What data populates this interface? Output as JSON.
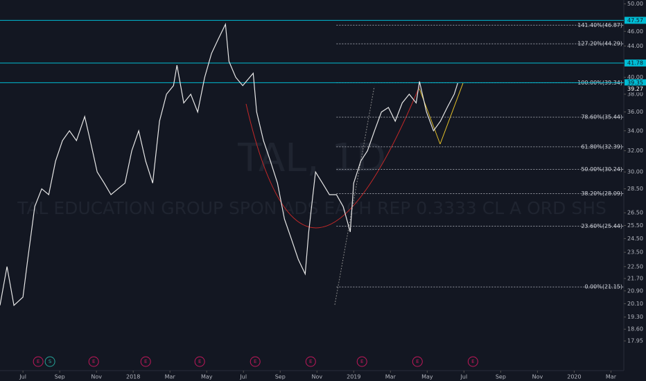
{
  "chart_data": {
    "type": "line",
    "watermark": "TAL, 1D",
    "watermark_subtitle": "TAL EDUCATION GROUP SPON ADS EACH REP 0.3333 CL A ORD SHS",
    "log_scale": true,
    "xlim": [
      -1.25,
      32.7
    ],
    "ylim": [
      16.4,
      50.6
    ],
    "xticks": [
      {
        "value": 0,
        "label": "Jul"
      },
      {
        "value": 2,
        "label": "Sep"
      },
      {
        "value": 4,
        "label": "Nov"
      },
      {
        "value": 6,
        "label": "2018"
      },
      {
        "value": 8,
        "label": "Mar"
      },
      {
        "value": 10,
        "label": "May"
      },
      {
        "value": 12,
        "label": "Jul"
      },
      {
        "value": 14,
        "label": "Sep"
      },
      {
        "value": 16,
        "label": "Nov"
      },
      {
        "value": 18,
        "label": "2019"
      },
      {
        "value": 20,
        "label": "Mar"
      },
      {
        "value": 22,
        "label": "May"
      },
      {
        "value": 24,
        "label": "Jul"
      },
      {
        "value": 26,
        "label": "Sep"
      },
      {
        "value": 28,
        "label": "Nov"
      },
      {
        "value": 30,
        "label": "2020"
      },
      {
        "value": 32,
        "label": "Mar"
      }
    ],
    "yticks": [
      {
        "value": 50,
        "label": "50.00"
      },
      {
        "value": 46,
        "label": "46.00"
      },
      {
        "value": 44,
        "label": "44.00"
      },
      {
        "value": 40,
        "label": "40.00"
      },
      {
        "value": 38,
        "label": "38.00"
      },
      {
        "value": 36,
        "label": "36.00"
      },
      {
        "value": 34,
        "label": "34.00"
      },
      {
        "value": 32,
        "label": "32.00"
      },
      {
        "value": 30,
        "label": "30.00"
      },
      {
        "value": 28.5,
        "label": "28.50"
      },
      {
        "value": 26.5,
        "label": "26.50"
      },
      {
        "value": 25.5,
        "label": "25.50"
      },
      {
        "value": 24.5,
        "label": "24.50"
      },
      {
        "value": 23.5,
        "label": "23.50"
      },
      {
        "value": 22.5,
        "label": "22.50"
      },
      {
        "value": 21.7,
        "label": "21.70"
      },
      {
        "value": 20.9,
        "label": "20.90"
      },
      {
        "value": 20.1,
        "label": "20.10"
      },
      {
        "value": 19.3,
        "label": "19.30"
      },
      {
        "value": 18.6,
        "label": "18.60"
      },
      {
        "value": 17.95,
        "label": "17.95"
      }
    ],
    "series": [
      {
        "color": "#e8e8e8",
        "x": [
          -1.25,
          -0.87,
          -0.49,
          0,
          0.26,
          0.64,
          1.02,
          1.4,
          1.77,
          2.15,
          2.53,
          2.91,
          3.36,
          3.66,
          4.04,
          4.42,
          4.79,
          5.17,
          5.55,
          5.92,
          6.3,
          6.68,
          7.06,
          7.43,
          7.81,
          8.19,
          8.38,
          8.75,
          9.13,
          9.51,
          9.89,
          10.26,
          10.64,
          11.02,
          11.21,
          11.58,
          11.96,
          12.34,
          12.53,
          12.72,
          13.09,
          13.47,
          13.85,
          14.23,
          14.6,
          14.98,
          15.36,
          15.55,
          15.92,
          16.3,
          16.68,
          17.06,
          17.43,
          17.81,
          18,
          18.38,
          18.75,
          19.13,
          19.51,
          19.89,
          20.26,
          20.64,
          21.02,
          21.4,
          21.58,
          21.96,
          22.34,
          22.72,
          23.09,
          23.47,
          23.66
        ],
        "values": [
          20,
          22.5,
          20,
          20.5,
          23,
          27,
          28.5,
          28,
          31,
          33,
          34,
          33,
          35.5,
          33,
          30,
          29,
          28,
          28.5,
          29,
          32,
          34,
          31,
          29,
          35,
          38,
          39,
          41.5,
          37,
          38,
          36,
          40,
          43,
          45,
          47,
          42,
          40,
          39,
          40,
          40.5,
          36,
          33,
          31,
          29,
          26,
          24.5,
          23,
          22,
          25,
          30,
          29,
          28,
          28,
          27,
          25,
          29,
          31,
          32,
          34,
          36,
          36.5,
          35,
          37,
          38,
          37,
          39.5,
          36,
          34,
          35,
          36.5,
          38,
          39.3
        ]
      }
    ],
    "levels": [
      47.57,
      41.78,
      39.35
    ],
    "last_price": 39.27,
    "fib_levels": [
      {
        "value": 46.87,
        "label": "141.40%(46.87)"
      },
      {
        "value": 44.29,
        "label": "127.20%(44.29)"
      },
      {
        "value": 39.34,
        "label": "100.00%(39.34)"
      },
      {
        "value": 35.44,
        "label": "78.60%(35.44)"
      },
      {
        "value": 32.39,
        "label": "61.80%(32.39)"
      },
      {
        "value": 30.24,
        "label": "50.00%(30.24)"
      },
      {
        "value": 28.09,
        "label": "38.20%(28.09)"
      },
      {
        "value": 25.44,
        "label": "23.60%(25.44)"
      },
      {
        "value": 21.15,
        "label": "0.00%(21.15)"
      }
    ],
    "fib_start_x": 17.06,
    "events": [
      {
        "x": 0.83,
        "label": "E"
      },
      {
        "x": 1.47,
        "label": "S"
      },
      {
        "x": 3.85,
        "label": "E"
      },
      {
        "x": 6.68,
        "label": "E"
      },
      {
        "x": 9.62,
        "label": "E"
      },
      {
        "x": 12.64,
        "label": "E"
      },
      {
        "x": 15.66,
        "label": "E"
      },
      {
        "x": 18.45,
        "label": "E"
      },
      {
        "x": 21.47,
        "label": "E"
      },
      {
        "x": 24.49,
        "label": "E"
      }
    ]
  }
}
